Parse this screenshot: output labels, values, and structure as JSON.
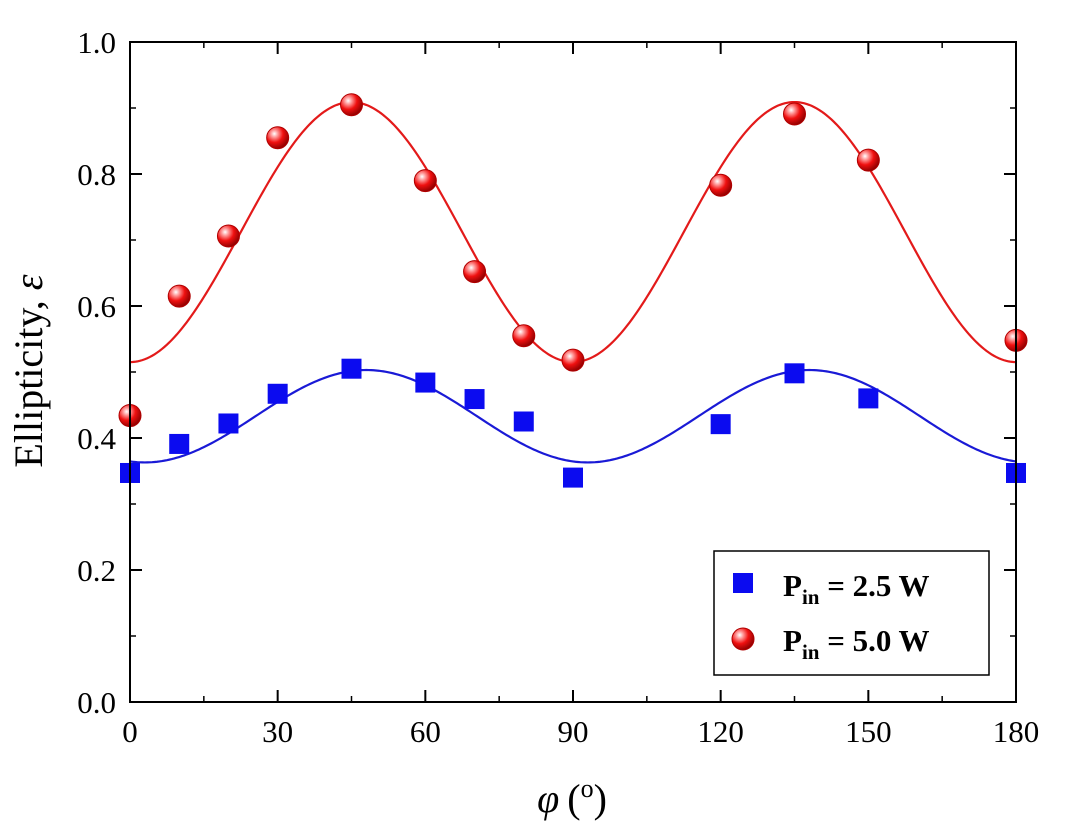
{
  "chart_data": {
    "type": "scatter",
    "xlabel": {
      "symbol": "φ",
      "unit": "o"
    },
    "ylabel": {
      "text": "Ellipticity, ",
      "symbol": "ε"
    },
    "xlim": [
      0,
      180
    ],
    "ylim": [
      0.0,
      1.0
    ],
    "xticks": [
      0,
      30,
      60,
      90,
      120,
      150,
      180
    ],
    "xtick_labels": [
      "0",
      "30",
      "60",
      "90",
      "120",
      "150",
      "180"
    ],
    "yticks": [
      0.0,
      0.2,
      0.4,
      0.6,
      0.8,
      1.0
    ],
    "ytick_labels": [
      "0.0",
      "0.2",
      "0.4",
      "0.6",
      "0.8",
      "1.0"
    ],
    "grid": false,
    "legend_position": "bottom-right",
    "series": [
      {
        "name": "2.5 W",
        "legend_prefix": "P",
        "legend_sub": "in",
        "legend_suffix": " = 2.5 W",
        "marker": "square",
        "color": "#0b0bf0",
        "points": [
          [
            0,
            0.347
          ],
          [
            10,
            0.391
          ],
          [
            20,
            0.422
          ],
          [
            30,
            0.467
          ],
          [
            45,
            0.505
          ],
          [
            60,
            0.484
          ],
          [
            70,
            0.459
          ],
          [
            80,
            0.425
          ],
          [
            90,
            0.34
          ],
          [
            120,
            0.421
          ],
          [
            135,
            0.498
          ],
          [
            150,
            0.46
          ],
          [
            180,
            0.347
          ]
        ],
        "fit": {
          "mean": 0.433,
          "amplitude": 0.07,
          "period": 90,
          "phase": 48,
          "color": "#1a1ad6"
        }
      },
      {
        "name": "5.0 W",
        "legend_prefix": "P",
        "legend_sub": "in",
        "legend_suffix": " = 5.0 W",
        "marker": "sphere",
        "color": "#e00000",
        "points": [
          [
            0,
            0.434
          ],
          [
            10,
            0.615
          ],
          [
            20,
            0.706
          ],
          [
            30,
            0.855
          ],
          [
            45,
            0.905
          ],
          [
            60,
            0.79
          ],
          [
            70,
            0.652
          ],
          [
            80,
            0.555
          ],
          [
            90,
            0.518
          ],
          [
            120,
            0.783
          ],
          [
            135,
            0.891
          ],
          [
            150,
            0.821
          ],
          [
            180,
            0.548
          ]
        ],
        "fit": {
          "mean": 0.712,
          "amplitude": 0.197,
          "period": 90,
          "phase": 45,
          "color": "#e31a1a"
        }
      }
    ]
  }
}
